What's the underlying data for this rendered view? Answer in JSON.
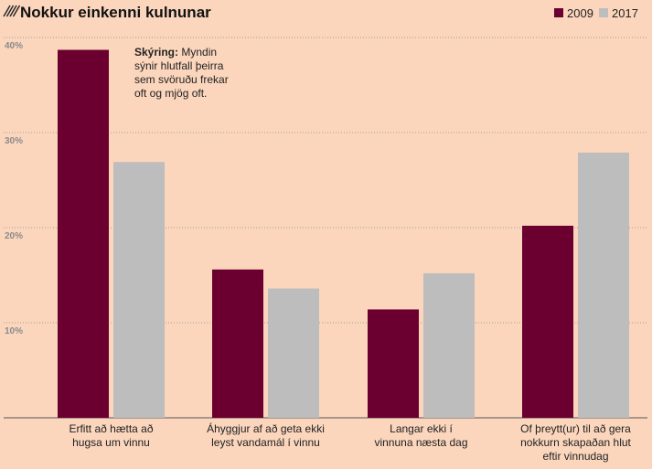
{
  "title": "Nokkur einkenni kulnunar",
  "title_icon": "diagonal-hatch-icon",
  "legend": {
    "placement": "top-right",
    "items": [
      {
        "label": "2009",
        "color": "#6b0030"
      },
      {
        "label": "2017",
        "color": "#bdbdbd"
      }
    ]
  },
  "annotation": {
    "bold": "Skýring:",
    "lines": [
      " Myndin",
      "sýnir hlutfall þeirra",
      "sem svöruðu frekar",
      "oft og mjög oft."
    ]
  },
  "colors": {
    "background": "#fbd6bd",
    "grid": "#8a8a8a",
    "series_2009": "#6b0030",
    "series_2017": "#bdbdbd"
  },
  "chart_data": {
    "type": "bar",
    "title": "Nokkur einkenni kulnunar",
    "xlabel": "",
    "ylabel": "",
    "ylim": [
      0,
      40
    ],
    "yticks": [
      {
        "value": 10,
        "label": "10%"
      },
      {
        "value": 20,
        "label": "20%"
      },
      {
        "value": 30,
        "label": "30%"
      },
      {
        "value": 40,
        "label": "40%"
      }
    ],
    "grid": true,
    "categories": [
      [
        "Erfitt að hætta að",
        "hugsa um vinnu"
      ],
      [
        "Áhyggjur af að geta ekki",
        "leyst vandamál í vinnu"
      ],
      [
        "Langar ekki í",
        "vinnuna næsta dag"
      ],
      [
        "Of þreytt(ur) til að gera",
        "nokkurn skapaðan hlut",
        "eftir vinnudag"
      ]
    ],
    "series": [
      {
        "name": "2009",
        "values": [
          38.7,
          15.6,
          11.4,
          20.2
        ]
      },
      {
        "name": "2017",
        "values": [
          26.9,
          13.6,
          15.2,
          27.9
        ]
      }
    ]
  }
}
